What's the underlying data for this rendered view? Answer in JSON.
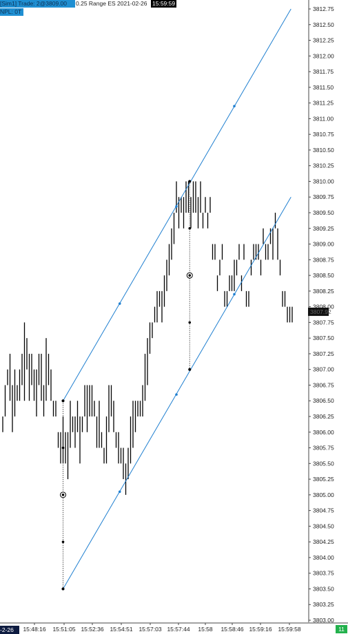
{
  "header": {
    "account_trade": "[Sim1]  Trade: 2@3809.00",
    "instrument": "0.25 Range ES 2021-02-26",
    "time": "15:59:59",
    "npl": "NPL: 0T"
  },
  "footer": {
    "date_stub": "-2-26",
    "count": "11"
  },
  "colors": {
    "channel": "#1f7fd0",
    "ticks": "#000000",
    "price_marker_bg": "#111111",
    "count_box": "#22b14c"
  },
  "chart_data": {
    "type": "range-bar",
    "y_axis": {
      "min": 3803.0,
      "max": 3812.75,
      "step": 0.25,
      "tick_labels": [
        "3812.75",
        "3812.50",
        "3812.25",
        "3812.00",
        "3811.75",
        "3811.50",
        "3811.25",
        "3811.00",
        "3810.75",
        "3810.50",
        "3810.25",
        "3810.00",
        "3809.75",
        "3809.50",
        "3809.25",
        "3809.00",
        "3808.75",
        "3808.50",
        "3808.25",
        "3808.00",
        "3807.75",
        "3807.50",
        "3807.25",
        "3807.00",
        "3806.75",
        "3806.50",
        "3806.25",
        "3806.00",
        "3805.75",
        "3805.50",
        "3805.25",
        "3805.00",
        "3804.75",
        "3804.50",
        "3804.25",
        "3804.00",
        "3803.75",
        "3803.50",
        "3803.25",
        "3803.00"
      ]
    },
    "x_axis": {
      "tick_labels": [
        "15:48:16",
        "15:51:05",
        "15:52:36",
        "15:54:51",
        "15:57:03",
        "15:57:44",
        "15:58",
        "15:58:46",
        "15:59:16",
        "15:59:58"
      ]
    },
    "current_price": "3807.92",
    "bars": [
      [
        3806.0,
        3806.25
      ],
      [
        3806.25,
        3806.75
      ],
      [
        3806.75,
        3807.0
      ],
      [
        3806.5,
        3807.25
      ],
      [
        3806.0,
        3806.75
      ],
      [
        3806.25,
        3807.0
      ],
      [
        3806.5,
        3806.75
      ],
      [
        3806.5,
        3807.0
      ],
      [
        3806.75,
        3807.25
      ],
      [
        3806.5,
        3807.75
      ],
      [
        3807.0,
        3807.5
      ],
      [
        3806.5,
        3807.25
      ],
      [
        3806.75,
        3807.25
      ],
      [
        3806.5,
        3807.0
      ],
      [
        3806.25,
        3807.0
      ],
      [
        3806.75,
        3807.25
      ],
      [
        3806.5,
        3807.25
      ],
      [
        3806.25,
        3806.75
      ],
      [
        3806.5,
        3807.5
      ],
      [
        3806.75,
        3807.25
      ],
      [
        3806.5,
        3807.0
      ],
      [
        3806.25,
        3806.5
      ],
      [
        3806.25,
        3806.5
      ],
      [
        3805.75,
        3806.0
      ],
      [
        3805.5,
        3806.0
      ],
      [
        3805.5,
        3806.25
      ],
      [
        3805.5,
        3806.0
      ],
      [
        3805.25,
        3806.0
      ],
      [
        3805.75,
        3806.5
      ],
      [
        3806.0,
        3806.25
      ],
      [
        3805.75,
        3806.25
      ],
      [
        3806.0,
        3806.5
      ],
      [
        3805.5,
        3806.25
      ],
      [
        3806.0,
        3806.25
      ],
      [
        3806.25,
        3806.75
      ],
      [
        3806.0,
        3806.75
      ],
      [
        3806.25,
        3806.75
      ],
      [
        3806.25,
        3806.75
      ],
      [
        3806.25,
        3806.5
      ],
      [
        3805.75,
        3806.25
      ],
      [
        3805.75,
        3806.5
      ],
      [
        3805.75,
        3806.0
      ],
      [
        3805.5,
        3805.75
      ],
      [
        3805.5,
        3806.25
      ],
      [
        3806.0,
        3806.75
      ],
      [
        3806.25,
        3806.75
      ],
      [
        3806.0,
        3806.5
      ],
      [
        3805.75,
        3806.0
      ],
      [
        3805.5,
        3806.0
      ],
      [
        3805.5,
        3805.75
      ],
      [
        3805.25,
        3805.75
      ],
      [
        3805.0,
        3805.5
      ],
      [
        3805.25,
        3805.75
      ],
      [
        3805.5,
        3806.25
      ],
      [
        3805.75,
        3806.5
      ],
      [
        3806.0,
        3806.5
      ],
      [
        3806.25,
        3806.5
      ],
      [
        3806.25,
        3806.5
      ],
      [
        3806.25,
        3806.75
      ],
      [
        3806.5,
        3807.25
      ],
      [
        3806.75,
        3807.5
      ],
      [
        3807.25,
        3807.75
      ],
      [
        3807.5,
        3807.75
      ],
      [
        3807.75,
        3808.0
      ],
      [
        3807.75,
        3808.25
      ],
      [
        3808.0,
        3808.25
      ],
      [
        3807.75,
        3808.25
      ],
      [
        3808.0,
        3808.5
      ],
      [
        3808.25,
        3808.75
      ],
      [
        3808.5,
        3809.0
      ],
      [
        3808.75,
        3809.25
      ],
      [
        3809.0,
        3809.5
      ],
      [
        3809.5,
        3810.0
      ],
      [
        3809.25,
        3809.75
      ],
      [
        3809.5,
        3809.75
      ],
      [
        3809.25,
        3809.75
      ],
      [
        3809.5,
        3810.0
      ],
      [
        3809.5,
        3810.0
      ],
      [
        3809.25,
        3809.75
      ],
      [
        3809.5,
        3810.0
      ],
      [
        3809.5,
        3810.0
      ],
      [
        3809.25,
        3809.75
      ],
      [
        3809.5,
        3810.0
      ],
      [
        3809.25,
        3809.5
      ],
      [
        3809.5,
        3809.75
      ],
      [
        3809.25,
        3809.5
      ],
      [
        3809.5,
        3809.75
      ],
      [
        3808.75,
        3809.0
      ],
      [
        3808.75,
        3809.0
      ],
      [
        3808.25,
        3808.5
      ],
      [
        3808.5,
        3808.75
      ],
      [
        3808.75,
        3809.0
      ],
      [
        3808.0,
        3808.25
      ],
      [
        3808.0,
        3808.25
      ],
      [
        3808.25,
        3808.5
      ],
      [
        3808.25,
        3808.5
      ],
      [
        3808.25,
        3808.75
      ],
      [
        3808.5,
        3808.75
      ],
      [
        3808.75,
        3809.0
      ],
      [
        3808.25,
        3808.5
      ],
      [
        3808.75,
        3809.0
      ],
      [
        3808.0,
        3808.25
      ],
      [
        3808.0,
        3808.25
      ],
      [
        3808.5,
        3808.75
      ],
      [
        3808.75,
        3809.0
      ],
      [
        3808.75,
        3809.0
      ],
      [
        3808.75,
        3809.0
      ],
      [
        3808.5,
        3808.75
      ],
      [
        3809.0,
        3809.25
      ],
      [
        3808.75,
        3809.0
      ],
      [
        3808.75,
        3809.0
      ],
      [
        3809.0,
        3809.25
      ],
      [
        3808.75,
        3809.25
      ],
      [
        3809.25,
        3809.5
      ],
      [
        3808.75,
        3809.25
      ],
      [
        3808.5,
        3808.75
      ],
      [
        3808.0,
        3808.25
      ],
      [
        3808.0,
        3808.25
      ],
      [
        3807.75,
        3808.0
      ],
      [
        3807.75,
        3808.0
      ],
      [
        3807.75,
        3808.0
      ]
    ],
    "channel": {
      "upper": {
        "start_bar": 25,
        "start_price": 3806.5,
        "end_bar": 119.5,
        "end_price": 3812.75
      },
      "lower": {
        "start_bar": 25,
        "start_price": 3803.5,
        "end_bar": 119.5,
        "end_price": 3809.75
      },
      "upper_points": [
        {
          "bar": 25,
          "price": 3806.5
        },
        {
          "bar": 48.5,
          "price": 3808.05
        },
        {
          "bar": 72,
          "price": 3809.6
        },
        {
          "bar": 77.5,
          "price": 3810.0
        },
        {
          "bar": 96,
          "price": 3811.2
        }
      ],
      "lower_points": [
        {
          "bar": 25,
          "price": 3803.5
        },
        {
          "bar": 48.5,
          "price": 3805.05
        },
        {
          "bar": 72,
          "price": 3806.6
        },
        {
          "bar": 77.5,
          "price": 3807.0
        },
        {
          "bar": 96,
          "price": 3808.2
        }
      ],
      "connector_bars": [
        25,
        77.5
      ],
      "connector_dots": [
        {
          "bar": 25,
          "price": 3804.25
        },
        {
          "bar": 25,
          "price": 3805.75
        },
        {
          "bar": 77.5,
          "price": 3807.75
        },
        {
          "bar": 77.5,
          "price": 3809.25
        }
      ],
      "mid_targets": [
        {
          "bar": 25,
          "price": 3805.0
        },
        {
          "bar": 77.5,
          "price": 3808.5
        }
      ]
    },
    "legend": "none",
    "grid": false
  }
}
